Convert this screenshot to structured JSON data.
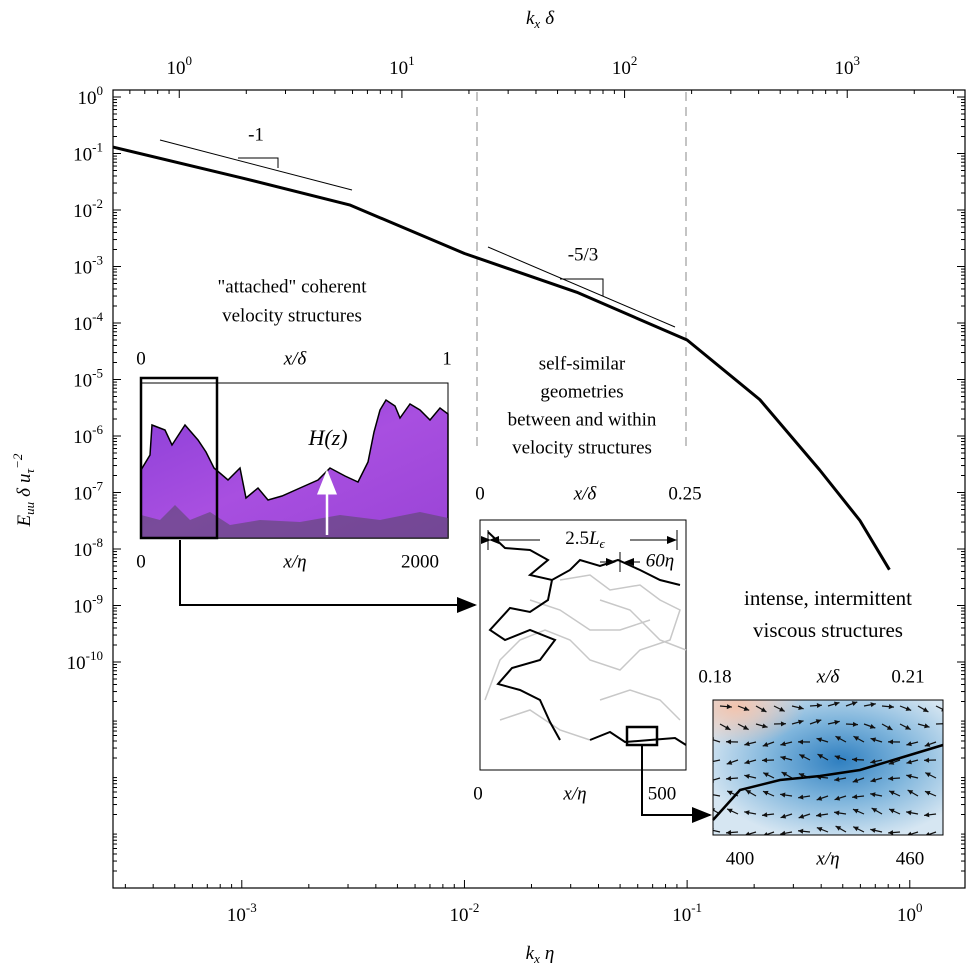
{
  "chart_data": {
    "type": "line",
    "x": [
      0.000264,
      0.001,
      0.00305,
      0.01,
      0.032,
      0.1,
      0.212,
      0.394,
      0.597,
      0.81
    ],
    "values": [
      0.13,
      0.037,
      0.0123,
      0.0017,
      0.00035,
      5e-05,
      4.4e-06,
      2.5e-07,
      3.2e-08,
      4.3e-09
    ],
    "color": "#000000",
    "xscale": "log",
    "yscale": "log",
    "minor_ticks": true,
    "xlim": [
      0.000264,
      1.77
    ],
    "ylim": [
      1e-14,
      1.33
    ],
    "x2lim": [
      0.504,
      3380
    ],
    "xticks": [
      {
        "value": 0.001,
        "label": "10",
        "exp": "-3"
      },
      {
        "value": 0.01,
        "label": "10",
        "exp": "-2"
      },
      {
        "value": 0.1,
        "label": "10",
        "exp": "-1"
      },
      {
        "value": 1,
        "label": "10",
        "exp": "0"
      }
    ],
    "x2ticks": [
      {
        "value": 1,
        "label": "10",
        "exp": "0"
      },
      {
        "value": 10,
        "label": "10",
        "exp": "1"
      },
      {
        "value": 100,
        "label": "10",
        "exp": "2"
      },
      {
        "value": 1000,
        "label": "10",
        "exp": "3"
      }
    ],
    "yticks": [
      {
        "value": 1,
        "label": "10",
        "exp": "0"
      },
      {
        "value": 0.1,
        "label": "10",
        "exp": "-1"
      },
      {
        "value": 0.01,
        "label": "10",
        "exp": "-2"
      },
      {
        "value": 0.001,
        "label": "10",
        "exp": "-3"
      },
      {
        "value": 0.0001,
        "label": "10",
        "exp": "-4"
      },
      {
        "value": 1e-05,
        "label": "10",
        "exp": "-5"
      },
      {
        "value": 1e-06,
        "label": "10",
        "exp": "-6"
      },
      {
        "value": 1e-07,
        "label": "10",
        "exp": "-7"
      },
      {
        "value": 1e-08,
        "label": "10",
        "exp": "-8"
      },
      {
        "value": 1e-09,
        "label": "10",
        "exp": "-9"
      },
      {
        "value": 1e-10,
        "label": "10",
        "exp": "-10"
      }
    ],
    "xlabel": [
      "k",
      "x",
      "η"
    ],
    "x2label": [
      "k",
      "x",
      "δ"
    ],
    "ylabel": [
      "E",
      "uu",
      "δ",
      "u",
      "τ",
      "−2"
    ],
    "annotations": {
      "slope1": "-1",
      "slope2": "-5/3",
      "attached": [
        "\"attached\" coherent",
        "velocity structures"
      ],
      "selfsimilar": [
        "self-similar",
        "geometries",
        "between and within",
        "velocity structures"
      ],
      "intense": [
        "intense, intermittent",
        "viscous structures"
      ]
    },
    "insets": [
      {
        "top": [
          "0",
          "x/δ",
          "1"
        ],
        "bottom": [
          "0",
          "x/η",
          "2000"
        ],
        "marker": "H(z)"
      },
      {
        "top": [
          "0",
          "x/δ",
          "0.25"
        ],
        "bottom": [
          "0",
          "x/η",
          "500"
        ],
        "span1": [
          "2.5",
          "L",
          "ϵ"
        ],
        "span2": "60η"
      },
      {
        "top": [
          "0.18",
          "x/δ",
          "0.21"
        ],
        "bottom": [
          "400",
          "x/η",
          "460"
        ]
      }
    ]
  }
}
